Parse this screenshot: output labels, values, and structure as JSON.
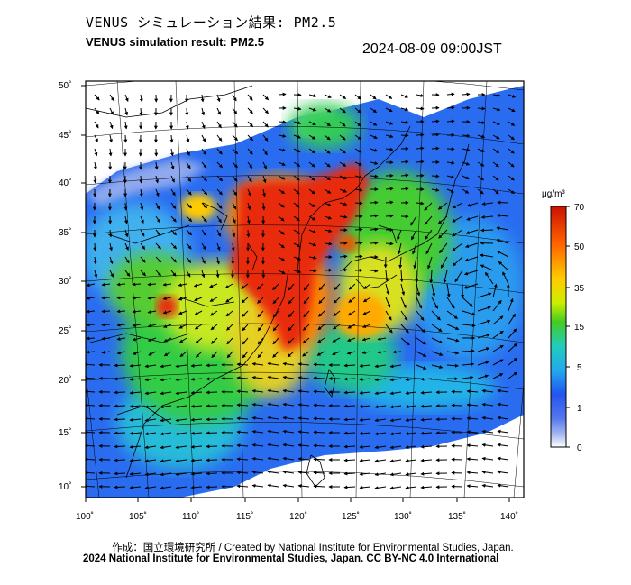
{
  "header": {
    "title_jp": "VENUS シミュレーション結果: PM2.5",
    "title_en": "VENUS simulation result: PM2.5",
    "timestamp": "2024-08-09 09:00JST"
  },
  "map": {
    "lon_ticks": [
      "100˚",
      "105˚",
      "110˚",
      "115˚",
      "120˚",
      "125˚",
      "130˚",
      "135˚",
      "140˚"
    ],
    "lat_ticks": [
      "50˚",
      "45˚",
      "40˚",
      "35˚",
      "30˚",
      "25˚",
      "20˚",
      "15˚",
      "10˚"
    ]
  },
  "colorbar": {
    "unit": "μg/m³",
    "levels": [
      "70",
      "50",
      "35",
      "15",
      "5",
      "1",
      "0"
    ],
    "colors": [
      "#cc1100",
      "#ff5500",
      "#ffaa00",
      "#ffee00",
      "#aaee22",
      "#33cc33",
      "#22ccaa",
      "#22aaee",
      "#2266ff",
      "#2233cc",
      "#8899ee",
      "#ffffff"
    ]
  },
  "footer": {
    "credit_1": "作成：国立環境研究所 / Created by National Institute for Environmental Studies, Japan.",
    "credit_2": "2024 National Institute for Environmental Studies, Japan. CC BY-NC 4.0 International"
  }
}
